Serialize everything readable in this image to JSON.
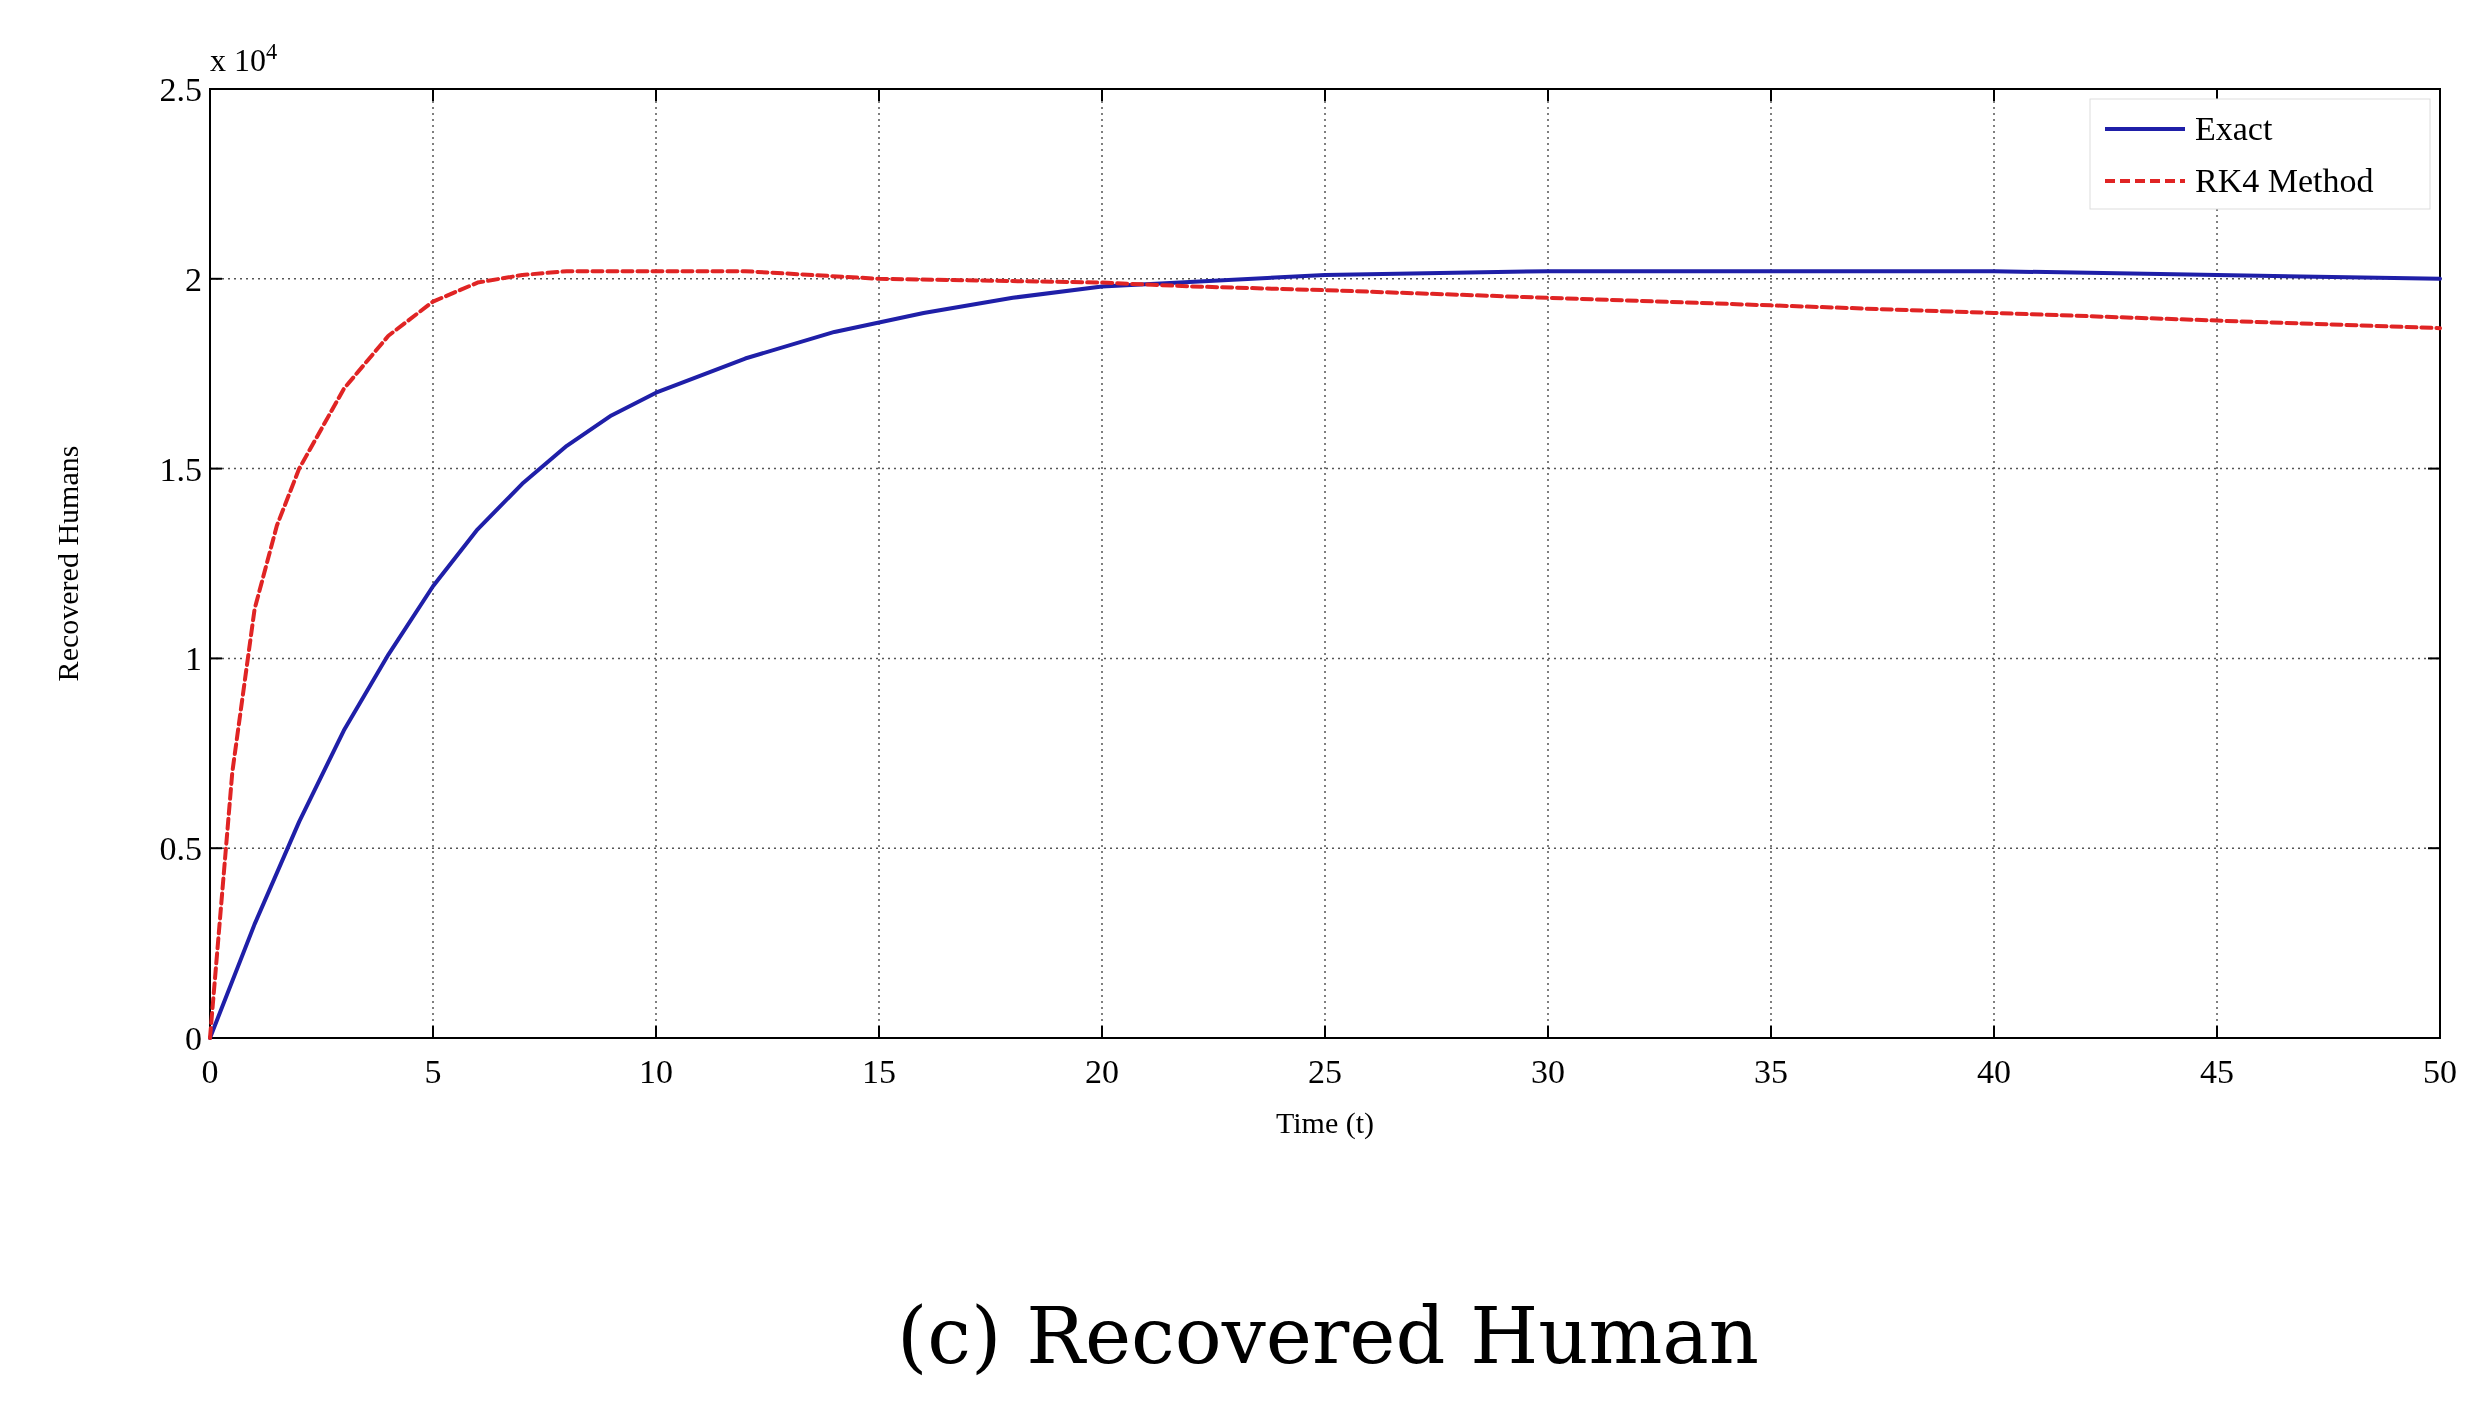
{
  "chart_data": {
    "type": "line",
    "ylabel": "Recovered Humans",
    "xlabel": "Time (t)",
    "annotations": [
      "x 10$^{4}$",
      "(c) Recovered Human"
    ],
    "xlim": [
      0,
      50
    ],
    "xticks": [
      0,
      5,
      10,
      15,
      20,
      25,
      30,
      35,
      40,
      45,
      50
    ],
    "ylim": [
      0,
      2.5
    ],
    "yticks": [
      0,
      0.5,
      1,
      1.5,
      2,
      2.5
    ],
    "grid": true,
    "legend": "top right",
    "series": [
      {
        "name": "Exact",
        "color": "#1f1fa8",
        "line_style": "solid",
        "x": [
          0,
          1,
          2,
          3,
          4,
          5,
          6,
          7,
          8,
          9,
          10,
          12,
          14,
          16,
          18,
          20,
          25,
          30,
          35,
          40,
          45,
          50
        ],
        "values": [
          0,
          0.3,
          0.57,
          0.81,
          1.01,
          1.19,
          1.34,
          1.46,
          1.56,
          1.64,
          1.7,
          1.79,
          1.86,
          1.91,
          1.95,
          1.98,
          2.01,
          2.02,
          2.02,
          2.02,
          2.01,
          2
        ]
      },
      {
        "name": "RK4 Method",
        "color": "#e02424",
        "line_style": "dashed",
        "x": [
          0,
          0.5,
          1,
          1.5,
          2,
          3,
          4,
          5,
          6,
          7,
          8,
          10,
          12,
          15,
          20,
          22,
          25,
          30,
          35,
          40,
          45,
          50
        ],
        "values": [
          0,
          0.7,
          1.13,
          1.35,
          1.5,
          1.71,
          1.85,
          1.94,
          1.99,
          2.01,
          2.02,
          2.02,
          2.02,
          2,
          1.99,
          1.98,
          1.97,
          1.95,
          1.93,
          1.91,
          1.89,
          1.87
        ]
      }
    ]
  }
}
